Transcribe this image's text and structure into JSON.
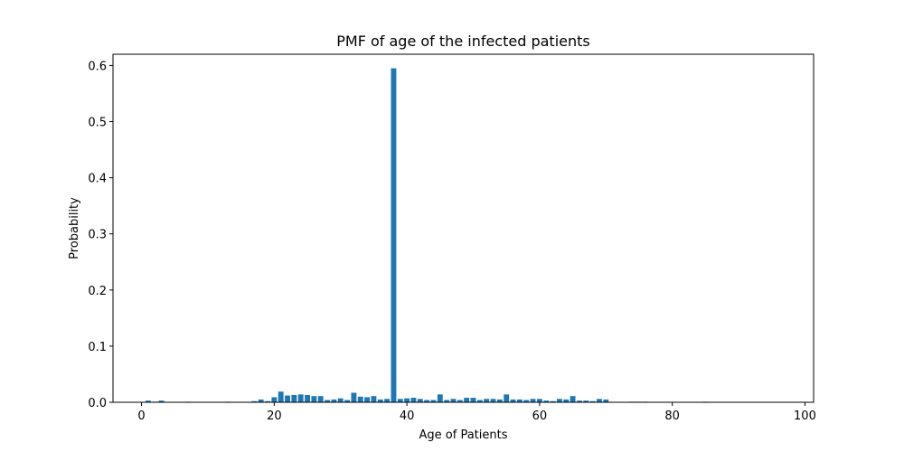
{
  "chart_data": {
    "type": "bar",
    "title": "PMF of age of the infected patients",
    "xlabel": "Age of Patients",
    "ylabel": "Probability",
    "xlim": [
      -4.3,
      101.3
    ],
    "ylim": [
      0,
      0.62
    ],
    "xticks": [
      0,
      20,
      40,
      60,
      80,
      100
    ],
    "xtick_labels": [
      "0",
      "20",
      "40",
      "60",
      "80",
      "100"
    ],
    "yticks": [
      0.0,
      0.1,
      0.2,
      0.3,
      0.4,
      0.5,
      0.6
    ],
    "ytick_labels": [
      "0.0",
      "0.1",
      "0.2",
      "0.3",
      "0.4",
      "0.5",
      "0.6"
    ],
    "bar_color": "#1f77b4",
    "grid": false,
    "x": [
      1,
      2,
      3,
      7,
      13,
      17,
      18,
      19,
      20,
      21,
      22,
      23,
      24,
      25,
      26,
      27,
      28,
      29,
      30,
      31,
      32,
      33,
      34,
      35,
      36,
      37,
      38,
      39,
      40,
      41,
      42,
      43,
      44,
      45,
      46,
      47,
      48,
      49,
      50,
      51,
      52,
      53,
      54,
      55,
      56,
      57,
      58,
      59,
      60,
      61,
      62,
      63,
      64,
      65,
      66,
      67,
      68,
      69,
      70,
      74,
      75,
      76,
      85
    ],
    "values": [
      0.003,
      0.001,
      0.003,
      0.001,
      0.001,
      0.002,
      0.005,
      0.002,
      0.009,
      0.019,
      0.012,
      0.013,
      0.014,
      0.013,
      0.011,
      0.011,
      0.004,
      0.005,
      0.007,
      0.004,
      0.017,
      0.01,
      0.009,
      0.011,
      0.005,
      0.006,
      0.595,
      0.006,
      0.007,
      0.008,
      0.006,
      0.004,
      0.004,
      0.014,
      0.004,
      0.006,
      0.004,
      0.008,
      0.008,
      0.004,
      0.006,
      0.006,
      0.005,
      0.014,
      0.005,
      0.005,
      0.004,
      0.006,
      0.006,
      0.003,
      0.002,
      0.006,
      0.005,
      0.011,
      0.003,
      0.003,
      0.002,
      0.006,
      0.005,
      0.001,
      0.001,
      0.001,
      0.001
    ]
  }
}
